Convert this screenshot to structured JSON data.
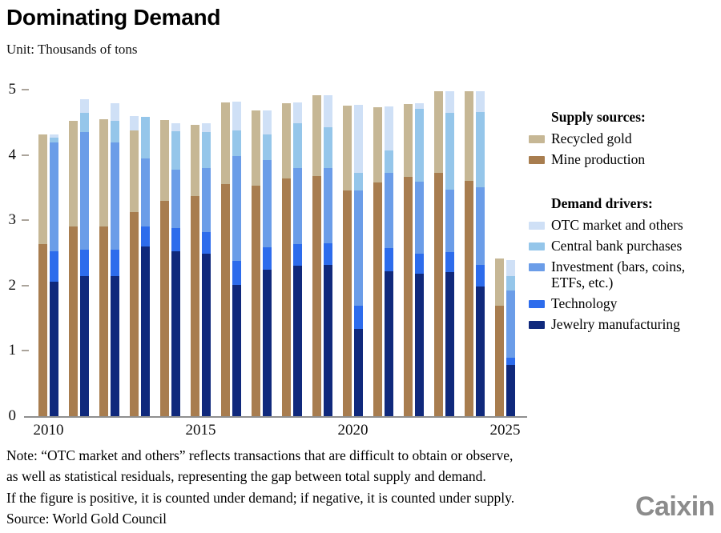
{
  "header": {
    "title": "Dominating Demand",
    "unit": "Unit: Thousands of tons"
  },
  "legend": {
    "supply_header": "Supply sources:",
    "demand_header": "Demand drivers:",
    "supply_items": [
      {
        "key": "recycled",
        "label": "Recycled gold",
        "color": "#c6b795"
      },
      {
        "key": "mine",
        "label": "Mine production",
        "color": "#a87d4f"
      }
    ],
    "demand_items": [
      {
        "key": "otc",
        "label": "OTC market and others",
        "color": "#cfe0f6"
      },
      {
        "key": "central_bank",
        "label": "Central bank purchases",
        "color": "#95c6ea"
      },
      {
        "key": "investment",
        "label": "Investment (bars, coins, ETFs, etc.)",
        "color": "#6b9de8"
      },
      {
        "key": "technology",
        "label": "Technology",
        "color": "#2d6cec"
      },
      {
        "key": "jewelry",
        "label": "Jewelry manufacturing",
        "color": "#10297c"
      }
    ]
  },
  "chart_data": {
    "type": "bar",
    "subtype": "paired-stacked-columns (left = supply, right = demand, per year)",
    "title": "Dominating Demand",
    "unit": "Thousands of tons",
    "ylim": [
      0,
      5
    ],
    "y_ticks": [
      0,
      1,
      2,
      3,
      4,
      5
    ],
    "grid": false,
    "legend_position": "right",
    "x": [
      2010,
      2011,
      2012,
      2013,
      2014,
      2015,
      2016,
      2017,
      2018,
      2019,
      2020,
      2021,
      2022,
      2023,
      2024,
      2025
    ],
    "x_tick_labels": [
      "2010",
      "2015",
      "2020",
      "2025"
    ],
    "x_tick_years": [
      2010,
      2015,
      2020,
      2025
    ],
    "supply_series": [
      {
        "name": "Mine production",
        "color": "#a87d4f",
        "values": [
          2.64,
          2.9,
          2.91,
          3.12,
          3.3,
          3.37,
          3.55,
          3.53,
          3.64,
          3.68,
          3.45,
          3.58,
          3.66,
          3.72,
          3.6,
          1.69
        ]
      },
      {
        "name": "Recycled gold",
        "color": "#c6b795",
        "values": [
          1.67,
          1.62,
          1.64,
          1.25,
          1.24,
          1.09,
          1.26,
          1.15,
          1.15,
          1.23,
          1.3,
          1.15,
          1.12,
          1.25,
          1.37,
          0.72
        ]
      },
      {
        "name": "OTC market and others (negative, counted under supply)",
        "color": "#cfe0f6",
        "values": [
          0,
          0,
          0,
          0.23,
          0,
          0,
          0,
          0,
          0,
          0,
          0,
          0,
          0,
          0,
          0,
          0
        ]
      }
    ],
    "demand_series": [
      {
        "name": "Jewelry manufacturing",
        "color": "#10297c",
        "values": [
          2.06,
          2.15,
          2.14,
          2.6,
          2.53,
          2.49,
          2.01,
          2.24,
          2.3,
          2.32,
          1.34,
          2.22,
          2.18,
          2.2,
          1.99,
          0.78
        ]
      },
      {
        "name": "Technology",
        "color": "#2d6cec",
        "values": [
          0.47,
          0.4,
          0.41,
          0.3,
          0.35,
          0.33,
          0.37,
          0.35,
          0.33,
          0.33,
          0.35,
          0.35,
          0.31,
          0.31,
          0.33,
          0.12
        ]
      },
      {
        "name": "Investment (bars, coins, ETFs, etc.)",
        "color": "#6b9de8",
        "values": [
          1.66,
          1.8,
          1.64,
          1.05,
          0.9,
          0.98,
          1.6,
          1.33,
          1.17,
          1.15,
          1.76,
          1.15,
          1.1,
          0.96,
          1.19,
          1.02
        ]
      },
      {
        "name": "Central bank purchases",
        "color": "#95c6ea",
        "values": [
          0.08,
          0.3,
          0.33,
          0.63,
          0.58,
          0.55,
          0.39,
          0.39,
          0.68,
          0.62,
          0.27,
          0.35,
          1.12,
          1.17,
          1.15,
          0.22
        ]
      },
      {
        "name": "OTC market and others",
        "color": "#cfe0f6",
        "values": [
          0.04,
          0.2,
          0.27,
          0.0,
          0.12,
          0.13,
          0.45,
          0.37,
          0.33,
          0.49,
          1.05,
          0.67,
          0.08,
          0.33,
          0.31,
          0.25
        ]
      }
    ]
  },
  "note": {
    "lines": [
      "Note: “OTC market and others” reflects transactions that are difficult to obtain or observe,",
      "as well as statistical residuals, representing the gap between total supply and demand.",
      "If the figure is positive, it is counted under demand; if negative, it is counted under supply."
    ],
    "source": "Source: World Gold Council"
  },
  "footer": {
    "logo": "Caixin"
  }
}
